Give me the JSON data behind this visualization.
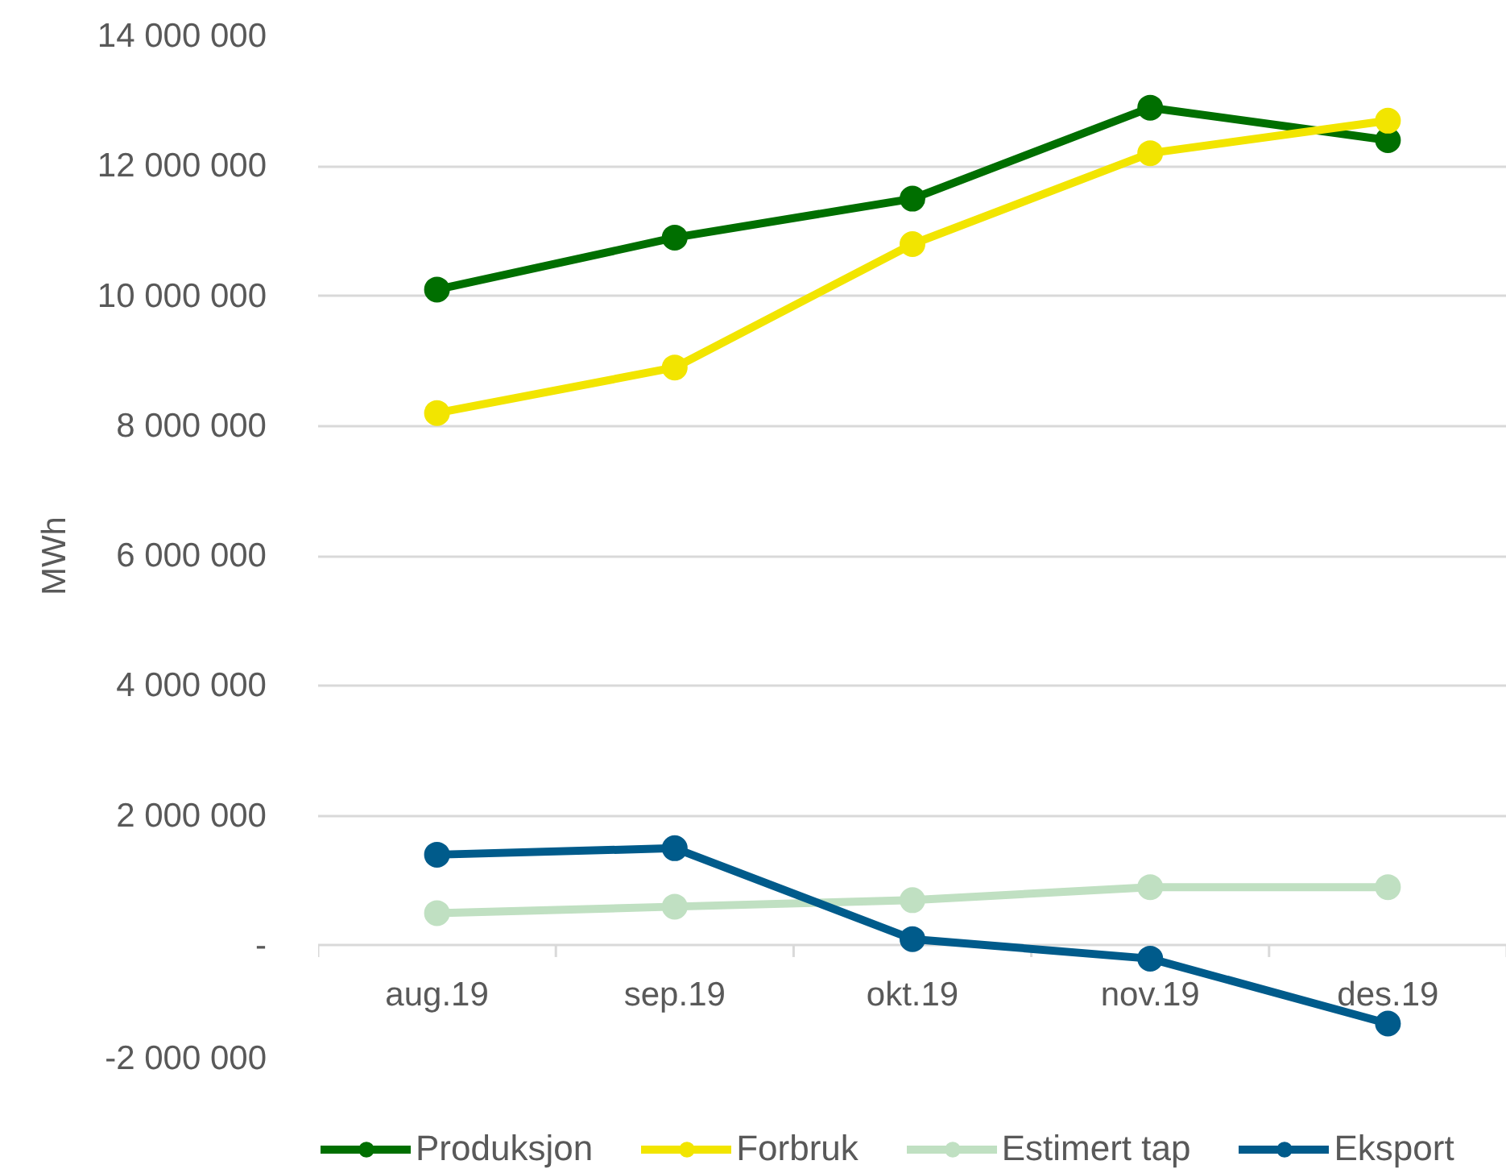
{
  "chart_data": {
    "type": "line",
    "ylabel": "MWh",
    "categories": [
      "aug.19",
      "sep.19",
      "okt.19",
      "nov.19",
      "des.19"
    ],
    "series": [
      {
        "name": "Produksjon",
        "color": "#006f00",
        "values": [
          10100000,
          10900000,
          11500000,
          12900000,
          12400000
        ]
      },
      {
        "name": "Forbruk",
        "color": "#f2e500",
        "values": [
          8200000,
          8900000,
          10800000,
          12200000,
          12700000
        ]
      },
      {
        "name": "Estimert tap",
        "color": "#c0e0c2",
        "values": [
          500000,
          600000,
          700000,
          900000,
          900000
        ]
      },
      {
        "name": "Eksport",
        "color": "#005b8b",
        "values": [
          1400000,
          1500000,
          100000,
          -200000,
          -1200000
        ]
      }
    ],
    "ylim": [
      -2000000,
      14000000
    ],
    "yticks": [
      {
        "value": -2000000,
        "label": "-2 000 000"
      },
      {
        "value": 0,
        "label": "-"
      },
      {
        "value": 2000000,
        "label": "2 000 000"
      },
      {
        "value": 4000000,
        "label": "4 000 000"
      },
      {
        "value": 6000000,
        "label": "6 000 000"
      },
      {
        "value": 8000000,
        "label": "8 000 000"
      },
      {
        "value": 10000000,
        "label": "10 000 000"
      },
      {
        "value": 12000000,
        "label": "12 000 000"
      },
      {
        "value": 14000000,
        "label": "14 000 000"
      }
    ],
    "grid": "y",
    "legend": "bottom",
    "marker": "circle",
    "line_style": "solid"
  }
}
